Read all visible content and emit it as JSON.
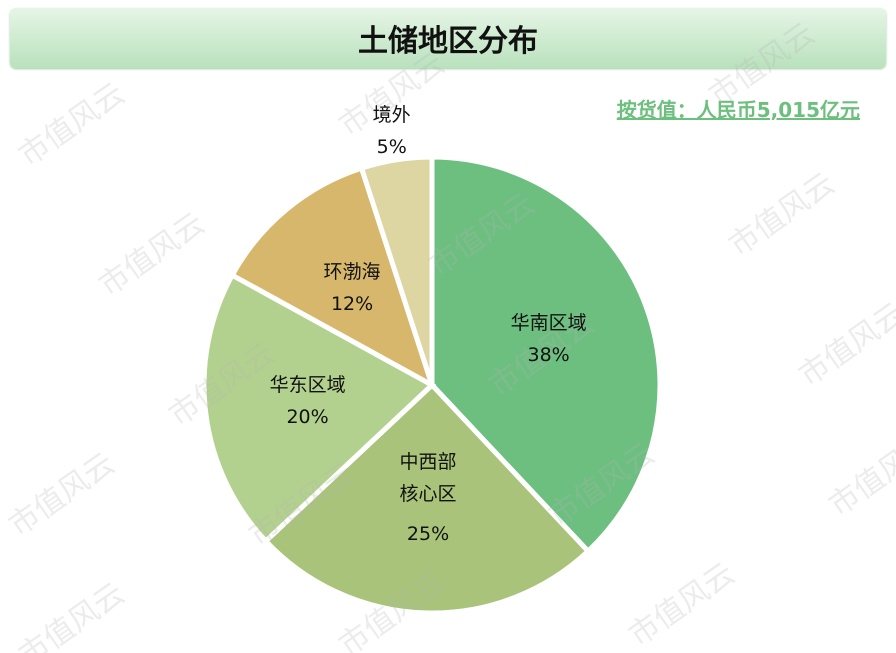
{
  "chart_data": {
    "type": "pie",
    "title": "土储地区分布",
    "subtitle": "按货值：人民币5,015亿元",
    "categories": [
      "华南区域",
      "中西部\n核心区",
      "华东区域",
      "环渤海",
      "境外"
    ],
    "values": [
      38,
      25,
      20,
      12,
      5
    ],
    "value_labels": [
      "38%",
      "25%",
      "20%",
      "12%",
      "5%"
    ],
    "colors": [
      "#6dbf80",
      "#a9c47a",
      "#b3d18e",
      "#d7b76b",
      "#ddd6a3"
    ],
    "watermark": "市值风云"
  }
}
